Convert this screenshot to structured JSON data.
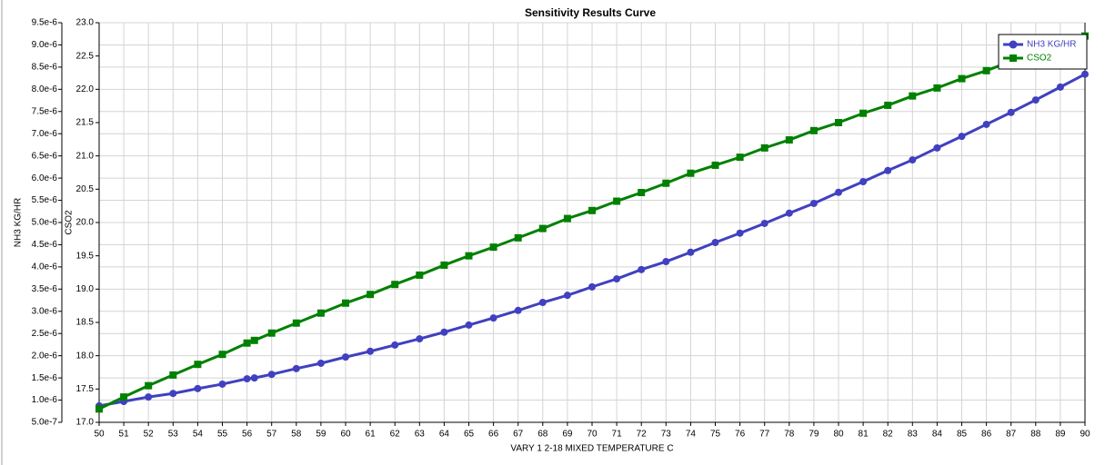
{
  "chart_data": {
    "type": "line",
    "title": "Sensitivity Results Curve",
    "x_label": "VARY   1 2-18 MIXED TEMPERATURE C",
    "y_label": "NH3 KG/HR",
    "y2_label": "CSO2",
    "x": [
      50,
      51,
      52,
      53,
      54,
      55,
      56,
      56.3,
      57,
      58,
      59,
      60,
      61,
      62,
      63,
      64,
      65,
      66,
      67,
      68,
      69,
      70,
      71,
      72,
      73,
      74,
      75,
      76,
      77,
      78,
      79,
      80,
      81,
      82,
      83,
      84,
      85,
      86,
      87,
      88,
      89,
      90
    ],
    "series": [
      {
        "name": "NH3 KG/HR",
        "color": "#4040c0",
        "marker": "circle",
        "values": [
          8.7e-07,
          9.7e-07,
          1.07e-06,
          1.15e-06,
          1.26e-06,
          1.36e-06,
          1.48e-06,
          1.5e-06,
          1.58e-06,
          1.71e-06,
          1.83e-06,
          1.97e-06,
          2.1e-06,
          2.24e-06,
          2.38e-06,
          2.53e-06,
          2.69e-06,
          2.85e-06,
          3.02e-06,
          3.2e-06,
          3.36e-06,
          3.55e-06,
          3.73e-06,
          3.94e-06,
          4.12e-06,
          4.33e-06,
          4.55e-06,
          4.76e-06,
          4.98e-06,
          5.21e-06,
          5.43e-06,
          5.68e-06,
          5.92e-06,
          6.17e-06,
          6.41e-06,
          6.68e-06,
          6.94e-06,
          7.21e-06,
          7.48e-06,
          7.76e-06,
          8.05e-06,
          8.34e-06
        ]
      },
      {
        "name": "CSO2",
        "color": "#008000",
        "marker": "square",
        "axis": "y2",
        "values": [
          17.2,
          17.38,
          17.55,
          17.71,
          17.87,
          18.02,
          18.19,
          18.23,
          18.34,
          18.49,
          18.64,
          18.79,
          18.92,
          19.07,
          19.21,
          19.36,
          19.5,
          19.63,
          19.77,
          19.91,
          20.06,
          20.18,
          20.32,
          20.45,
          20.59,
          20.74,
          20.86,
          20.98,
          21.12,
          21.24,
          21.38,
          21.5,
          21.64,
          21.76,
          21.9,
          22.02,
          22.16,
          22.28,
          22.42,
          22.55,
          22.68,
          22.8
        ]
      }
    ],
    "xlim": [
      50,
      90
    ],
    "xticks": [
      50,
      51,
      52,
      53,
      54,
      55,
      56,
      57,
      58,
      59,
      60,
      61,
      62,
      63,
      64,
      65,
      66,
      67,
      68,
      69,
      70,
      71,
      72,
      73,
      74,
      75,
      76,
      77,
      78,
      79,
      80,
      81,
      82,
      83,
      84,
      85,
      86,
      87,
      88,
      89,
      90
    ],
    "ylim": [
      5e-07,
      9.5e-06
    ],
    "yticks": [
      {
        "value": 5e-07,
        "label": "5.0e-7"
      },
      {
        "value": 1e-06,
        "label": "1.0e-6"
      },
      {
        "value": 1.5e-06,
        "label": "1.5e-6"
      },
      {
        "value": 2e-06,
        "label": "2.0e-6"
      },
      {
        "value": 2.5e-06,
        "label": "2.5e-6"
      },
      {
        "value": 3e-06,
        "label": "3.0e-6"
      },
      {
        "value": 3.5e-06,
        "label": "3.5e-6"
      },
      {
        "value": 4e-06,
        "label": "4.0e-6"
      },
      {
        "value": 4.5e-06,
        "label": "4.5e-6"
      },
      {
        "value": 5e-06,
        "label": "5.0e-6"
      },
      {
        "value": 5.5e-06,
        "label": "5.5e-6"
      },
      {
        "value": 6e-06,
        "label": "6.0e-6"
      },
      {
        "value": 6.5e-06,
        "label": "6.5e-6"
      },
      {
        "value": 7e-06,
        "label": "7.0e-6"
      },
      {
        "value": 7.5e-06,
        "label": "7.5e-6"
      },
      {
        "value": 8e-06,
        "label": "8.0e-6"
      },
      {
        "value": 8.5e-06,
        "label": "8.5e-6"
      },
      {
        "value": 9e-06,
        "label": "9.0e-6"
      },
      {
        "value": 9.5e-06,
        "label": "9.5e-6"
      }
    ],
    "y2lim": [
      17,
      23
    ],
    "y2ticks": [
      {
        "value": 17,
        "label": "17.0"
      },
      17.5,
      {
        "value": 18,
        "label": "18.0"
      },
      18.5,
      {
        "value": 19,
        "label": "19.0"
      },
      19.5,
      {
        "value": 20,
        "label": "20.0"
      },
      20.5,
      {
        "value": 21,
        "label": "21.0"
      },
      21.5,
      {
        "value": 22,
        "label": "22.0"
      },
      22.5,
      {
        "value": 23,
        "label": "23.0"
      }
    ],
    "grid": true,
    "legend": "top-right"
  }
}
